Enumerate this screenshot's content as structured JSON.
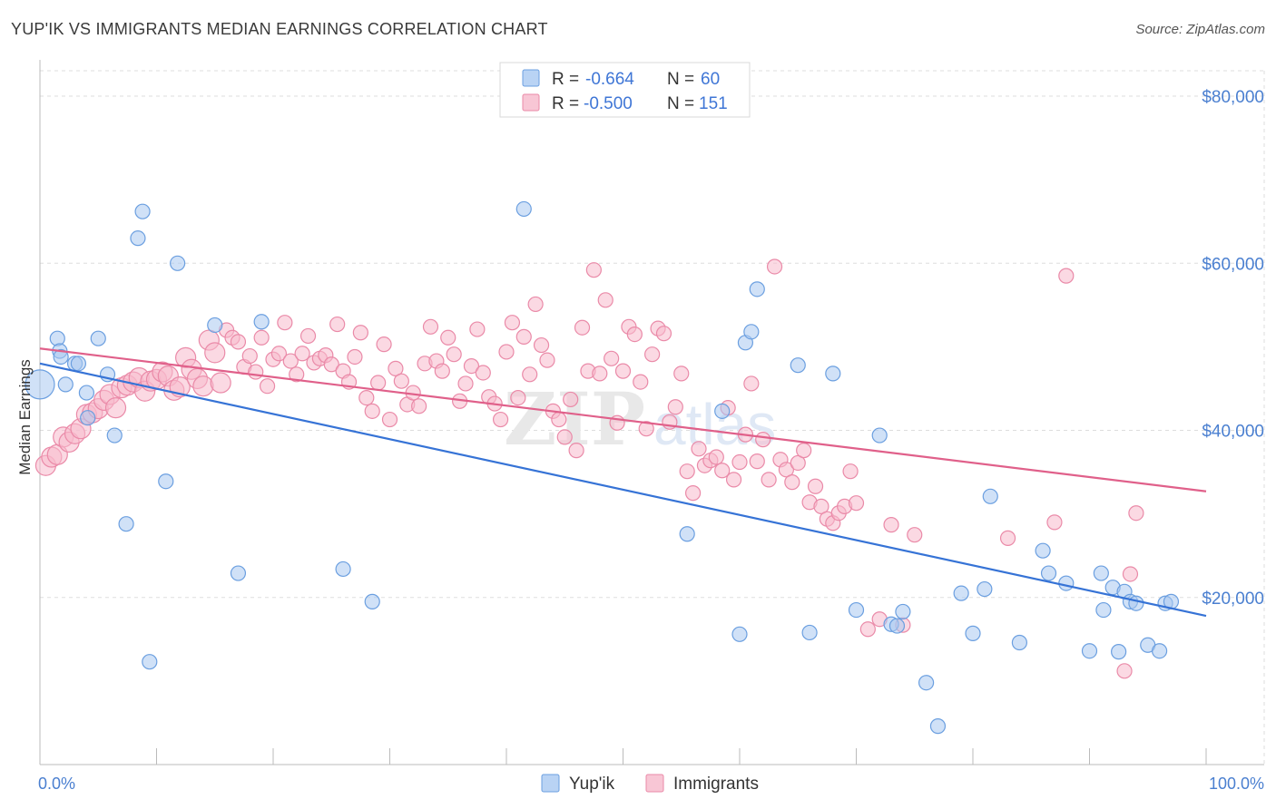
{
  "title": "YUP'IK VS IMMIGRANTS MEDIAN EARNINGS CORRELATION CHART",
  "source": "Source: ZipAtlas.com",
  "watermark": {
    "zip": "ZIP",
    "atlas": "atlas"
  },
  "colors": {
    "yupik_fill": "#a9c8f0",
    "yupik_stroke": "#6b9fe0",
    "yupik_line": "#3673d6",
    "imm_fill": "#f7b9cc",
    "imm_stroke": "#ea8aa8",
    "imm_line": "#e0608a",
    "grid": "#dddddd",
    "tick_label": "#4a7fd0"
  },
  "legend": {
    "rows": [
      {
        "r_label": "R =",
        "r_value": "-0.664",
        "n_label": "N =",
        "n_value": "60"
      },
      {
        "r_label": "R =",
        "r_value": "-0.500",
        "n_label": "N =",
        "n_value": "151"
      }
    ]
  },
  "chart_data": {
    "type": "scatter",
    "title": "YUP'IK VS IMMIGRANTS MEDIAN EARNINGS CORRELATION CHART",
    "xlabel": "",
    "ylabel": "Median Earnings",
    "xlim": [
      0,
      100
    ],
    "ylim": [
      0,
      85000
    ],
    "x_tick_labels": [
      "0.0%",
      "100.0%"
    ],
    "y_ticks": [
      20000,
      40000,
      60000,
      80000
    ],
    "y_tick_labels": [
      "$20,000",
      "$40,000",
      "$60,000",
      "$80,000"
    ],
    "grid": true,
    "series": [
      {
        "name": "Yup'ik",
        "trend": [
          [
            0,
            48000
          ],
          [
            100,
            17800
          ]
        ],
        "points": [
          [
            0,
            45500
          ],
          [
            1.5,
            51000
          ],
          [
            1.7,
            49500
          ],
          [
            1.8,
            48800
          ],
          [
            2.2,
            45500
          ],
          [
            3,
            48000
          ],
          [
            3.3,
            48000
          ],
          [
            4,
            44500
          ],
          [
            4.1,
            41500
          ],
          [
            5,
            51000
          ],
          [
            5.8,
            46700
          ],
          [
            6.4,
            39400
          ],
          [
            7.4,
            28800
          ],
          [
            8.4,
            63000
          ],
          [
            8.8,
            66200
          ],
          [
            9.4,
            12300
          ],
          [
            10.8,
            33900
          ],
          [
            11.8,
            60000
          ],
          [
            15,
            52600
          ],
          [
            17,
            22900
          ],
          [
            19,
            53000
          ],
          [
            26,
            23400
          ],
          [
            28.5,
            19500
          ],
          [
            41.5,
            66500
          ],
          [
            55.5,
            27600
          ],
          [
            58.5,
            42300
          ],
          [
            60,
            15600
          ],
          [
            60.5,
            50500
          ],
          [
            61,
            51800
          ],
          [
            61.5,
            56900
          ],
          [
            65,
            47800
          ],
          [
            66,
            15800
          ],
          [
            68,
            46800
          ],
          [
            70,
            18500
          ],
          [
            72,
            39400
          ],
          [
            73,
            16800
          ],
          [
            73.5,
            16600
          ],
          [
            74,
            18300
          ],
          [
            76,
            9800
          ],
          [
            77,
            4600
          ],
          [
            79,
            20500
          ],
          [
            80,
            15700
          ],
          [
            81,
            21000
          ],
          [
            81.5,
            32100
          ],
          [
            84,
            14600
          ],
          [
            86,
            25600
          ],
          [
            86.5,
            22900
          ],
          [
            88,
            21700
          ],
          [
            90,
            13600
          ],
          [
            91,
            22900
          ],
          [
            91.2,
            18500
          ],
          [
            92,
            21200
          ],
          [
            92.5,
            13500
          ],
          [
            93,
            20700
          ],
          [
            93.5,
            19500
          ],
          [
            94,
            19300
          ],
          [
            95,
            14300
          ],
          [
            96,
            13600
          ],
          [
            96.5,
            19300
          ],
          [
            97,
            19500
          ]
        ]
      },
      {
        "name": "Immigrants",
        "trend": [
          [
            0,
            49800
          ],
          [
            100,
            32700
          ]
        ],
        "points": [
          [
            0.5,
            35800
          ],
          [
            1,
            36800
          ],
          [
            1.5,
            37100
          ],
          [
            2,
            39200
          ],
          [
            2.5,
            38600
          ],
          [
            3,
            39600
          ],
          [
            3.5,
            40200
          ],
          [
            4,
            41900
          ],
          [
            4.5,
            42100
          ],
          [
            5,
            42600
          ],
          [
            5.5,
            43600
          ],
          [
            6,
            44300
          ],
          [
            6.5,
            42700
          ],
          [
            7,
            45100
          ],
          [
            7.5,
            45400
          ],
          [
            8,
            45800
          ],
          [
            8.5,
            46300
          ],
          [
            9,
            44700
          ],
          [
            9.5,
            45900
          ],
          [
            10,
            46100
          ],
          [
            10.5,
            47000
          ],
          [
            11,
            46500
          ],
          [
            11.5,
            44800
          ],
          [
            12,
            45200
          ],
          [
            12.5,
            48700
          ],
          [
            13,
            47300
          ],
          [
            13.5,
            46200
          ],
          [
            14,
            45300
          ],
          [
            14.5,
            50800
          ],
          [
            15,
            49300
          ],
          [
            15.5,
            45700
          ],
          [
            16,
            52000
          ],
          [
            16.5,
            51100
          ],
          [
            17,
            50600
          ],
          [
            17.5,
            47600
          ],
          [
            18,
            48900
          ],
          [
            18.5,
            47000
          ],
          [
            19,
            51100
          ],
          [
            19.5,
            45300
          ],
          [
            20,
            48500
          ],
          [
            20.5,
            49200
          ],
          [
            21,
            52900
          ],
          [
            21.5,
            48300
          ],
          [
            22,
            46700
          ],
          [
            22.5,
            49200
          ],
          [
            23,
            51300
          ],
          [
            23.5,
            48100
          ],
          [
            24,
            48600
          ],
          [
            24.5,
            49000
          ],
          [
            25,
            47900
          ],
          [
            25.5,
            52700
          ],
          [
            26,
            47100
          ],
          [
            26.5,
            45800
          ],
          [
            27,
            48800
          ],
          [
            27.5,
            51700
          ],
          [
            28,
            43900
          ],
          [
            28.5,
            42300
          ],
          [
            29,
            45700
          ],
          [
            29.5,
            50300
          ],
          [
            30,
            41300
          ],
          [
            30.5,
            47400
          ],
          [
            31,
            45900
          ],
          [
            31.5,
            43100
          ],
          [
            32,
            44500
          ],
          [
            32.5,
            42900
          ],
          [
            33,
            48000
          ],
          [
            33.5,
            52400
          ],
          [
            34,
            48300
          ],
          [
            34.5,
            47100
          ],
          [
            35,
            51100
          ],
          [
            35.5,
            49100
          ],
          [
            36,
            43500
          ],
          [
            36.5,
            45600
          ],
          [
            37,
            47700
          ],
          [
            37.5,
            52100
          ],
          [
            38,
            46900
          ],
          [
            38.5,
            44000
          ],
          [
            39,
            43200
          ],
          [
            39.5,
            41300
          ],
          [
            40,
            49400
          ],
          [
            40.5,
            52900
          ],
          [
            41,
            43900
          ],
          [
            41.5,
            51200
          ],
          [
            42,
            46700
          ],
          [
            42.5,
            55100
          ],
          [
            43,
            50200
          ],
          [
            43.5,
            48400
          ],
          [
            44,
            42300
          ],
          [
            44.5,
            41300
          ],
          [
            45,
            39200
          ],
          [
            45.5,
            43700
          ],
          [
            46,
            37600
          ],
          [
            46.5,
            52300
          ],
          [
            47,
            47100
          ],
          [
            47.5,
            59200
          ],
          [
            48,
            46800
          ],
          [
            48.5,
            55600
          ],
          [
            49,
            48600
          ],
          [
            49.5,
            40900
          ],
          [
            50,
            47100
          ],
          [
            50.5,
            52400
          ],
          [
            51,
            51500
          ],
          [
            51.5,
            45800
          ],
          [
            52,
            40200
          ],
          [
            52.5,
            49100
          ],
          [
            53,
            52200
          ],
          [
            53.5,
            51600
          ],
          [
            54,
            41000
          ],
          [
            54.5,
            42800
          ],
          [
            55,
            46800
          ],
          [
            55.5,
            35100
          ],
          [
            56,
            32500
          ],
          [
            56.5,
            37800
          ],
          [
            57,
            35800
          ],
          [
            57.5,
            36400
          ],
          [
            58,
            36800
          ],
          [
            58.5,
            35200
          ],
          [
            59,
            42700
          ],
          [
            59.5,
            34100
          ],
          [
            60,
            36200
          ],
          [
            60.5,
            39500
          ],
          [
            61,
            45600
          ],
          [
            61.5,
            36300
          ],
          [
            62,
            38900
          ],
          [
            62.5,
            34100
          ],
          [
            63,
            59600
          ],
          [
            63.5,
            36500
          ],
          [
            64,
            35300
          ],
          [
            64.5,
            33800
          ],
          [
            65,
            36100
          ],
          [
            65.5,
            37600
          ],
          [
            66,
            31400
          ],
          [
            66.5,
            33300
          ],
          [
            67,
            30900
          ],
          [
            67.5,
            29400
          ],
          [
            68,
            28900
          ],
          [
            68.5,
            30100
          ],
          [
            69,
            30900
          ],
          [
            69.5,
            35100
          ],
          [
            70,
            31300
          ],
          [
            71,
            16200
          ],
          [
            72,
            17400
          ],
          [
            73,
            28700
          ],
          [
            74,
            16700
          ],
          [
            75,
            27500
          ],
          [
            83,
            27100
          ],
          [
            87,
            29000
          ],
          [
            88,
            58500
          ],
          [
            93,
            11200
          ],
          [
            93.5,
            22800
          ],
          [
            94,
            30100
          ]
        ]
      }
    ]
  },
  "axis": {
    "x_min_label": "0.0%",
    "x_max_label": "100.0%",
    "y_title": "Median Earnings"
  },
  "bottom_legend": {
    "yupik": "Yup'ik",
    "immigrants": "Immigrants"
  }
}
